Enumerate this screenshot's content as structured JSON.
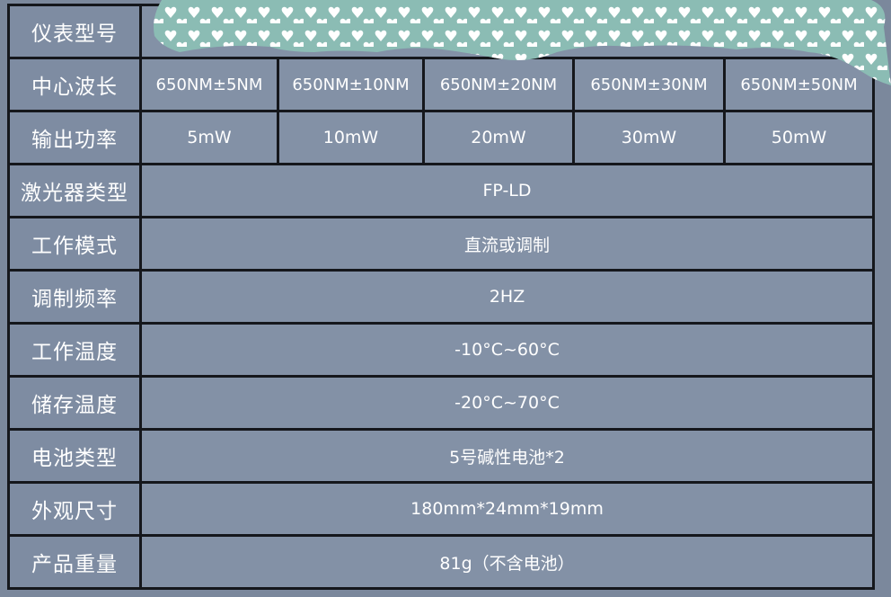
{
  "rows": [
    {
      "label": "仪表型号",
      "values": []
    },
    {
      "label": "中心波长",
      "values": [
        "650NM±5NM",
        "650NM±10NM",
        "650NM±20NM",
        "650NM±30NM",
        "650NM±50NM"
      ]
    },
    {
      "label": "输出功率",
      "values": [
        "5mW",
        "10mW",
        "20mW",
        "30mW",
        "50mW"
      ]
    },
    {
      "label": "激光器类型",
      "value": "FP-LD"
    },
    {
      "label": "工作模式",
      "value": "直流或调制"
    },
    {
      "label": "调制频率",
      "value": "2HZ"
    },
    {
      "label": "工作温度",
      "value": "-10°C~60°C"
    },
    {
      "label": "储存温度",
      "value": "-20°C~70°C"
    },
    {
      "label": "电池类型",
      "value": "5号碱性电池*2"
    },
    {
      "label": "外观尺寸",
      "value": "180mm*24mm*19mm"
    },
    {
      "label": "产品重量",
      "value": "81g（不含电池）"
    }
  ],
  "colors": {
    "background": "#7b889c",
    "cell": "#8391a6",
    "border": "#15171c",
    "overlay": "#8bbcb4",
    "hearts": "#ffffff"
  },
  "overlay_icon": "heart-pattern-sticker"
}
